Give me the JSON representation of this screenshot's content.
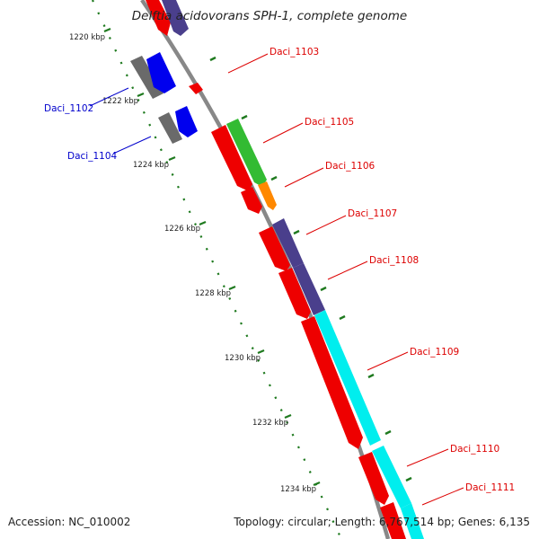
{
  "title": "Delftia acidovorans SPH-1, complete genome",
  "footer": {
    "accession": "Accession: NC_010002",
    "topology": "Topology: circular; Length: 6,767,514 bp; Genes: 6,135"
  },
  "colors": {
    "backbone": "#888888",
    "ticks": "#1f7a1f",
    "gene_red": "#ee0000",
    "gene_blue": "#0000ee",
    "gene_gray": "#6a6a6a",
    "gene_purple": "#4a3f8c",
    "gene_green": "#33bb33",
    "gene_orange": "#ff8800",
    "gene_cyan": "#00eeee",
    "label_red": "#dd0000",
    "label_blue": "#0000cc"
  },
  "ruler": [
    "1220 kbp",
    "1222 kbp",
    "1224 kbp",
    "1226 kbp",
    "1228 kbp",
    "1230 kbp",
    "1232 kbp",
    "1234 kbp"
  ],
  "gene_labels": [
    {
      "id": "daci-1102",
      "text": "Daci_1102",
      "color": "blue"
    },
    {
      "id": "daci-1103",
      "text": "Daci_1103",
      "color": "red"
    },
    {
      "id": "daci-1104",
      "text": "Daci_1104",
      "color": "blue"
    },
    {
      "id": "daci-1105",
      "text": "Daci_1105",
      "color": "red"
    },
    {
      "id": "daci-1106",
      "text": "Daci_1106",
      "color": "red"
    },
    {
      "id": "daci-1107",
      "text": "Daci_1107",
      "color": "red"
    },
    {
      "id": "daci-1108",
      "text": "Daci_1108",
      "color": "red"
    },
    {
      "id": "daci-1109",
      "text": "Daci_1109",
      "color": "red"
    },
    {
      "id": "daci-1110",
      "text": "Daci_1110",
      "color": "red"
    },
    {
      "id": "daci-1111",
      "text": "Daci_1111",
      "color": "red"
    }
  ]
}
